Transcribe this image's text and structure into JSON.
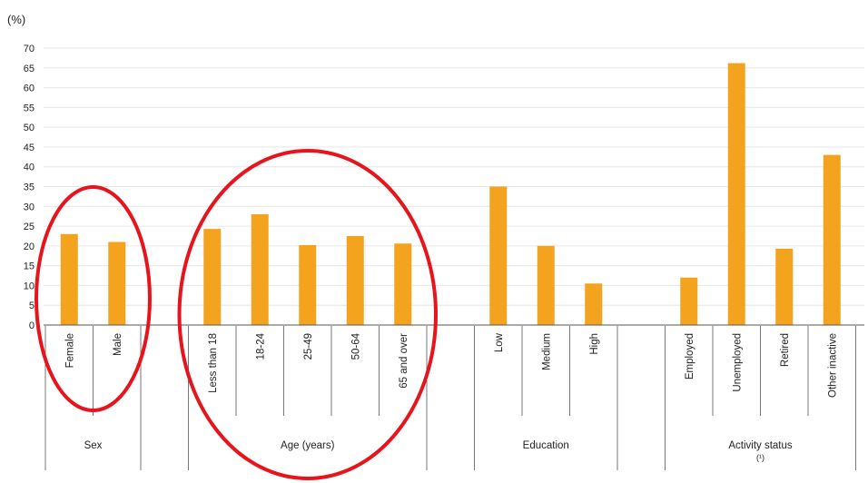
{
  "chart_data": {
    "type": "bar",
    "ylabel": "(%)",
    "ylim": [
      0,
      70
    ],
    "yticks": [
      0,
      5,
      10,
      15,
      20,
      25,
      30,
      35,
      40,
      45,
      50,
      55,
      60,
      65,
      70
    ],
    "grid": true,
    "colors": {
      "bar": "#f4a31e",
      "highlight": "#e8141c",
      "grid": "#e6e6e6",
      "axis": "#555555"
    },
    "categories": [
      "Female",
      "Male",
      "Less than 18",
      "18-24",
      "25-49",
      "50-64",
      "65 and over",
      "Low",
      "Medium",
      "High",
      "Employed",
      "Unemployed",
      "Retired",
      "Other inactive"
    ],
    "values": [
      23,
      21,
      24.3,
      28,
      20.2,
      22.5,
      20.6,
      35,
      20,
      10.5,
      12,
      66.2,
      19.3,
      43
    ],
    "groups": [
      {
        "label": "Sex",
        "note": "",
        "categories": [
          "Female",
          "Male"
        ]
      },
      {
        "label": "Age (years)",
        "note": "",
        "categories": [
          "Less than 18",
          "18-24",
          "25-49",
          "50-64",
          "65 and over"
        ]
      },
      {
        "label": "Education",
        "note": "",
        "categories": [
          "Low",
          "Medium",
          "High"
        ]
      },
      {
        "label": "Activity status",
        "note": "(¹)",
        "categories": [
          "Employed",
          "Unemployed",
          "Retired",
          "Other inactive"
        ]
      }
    ],
    "highlighted_groups": [
      "Sex",
      "Age (years)"
    ]
  }
}
